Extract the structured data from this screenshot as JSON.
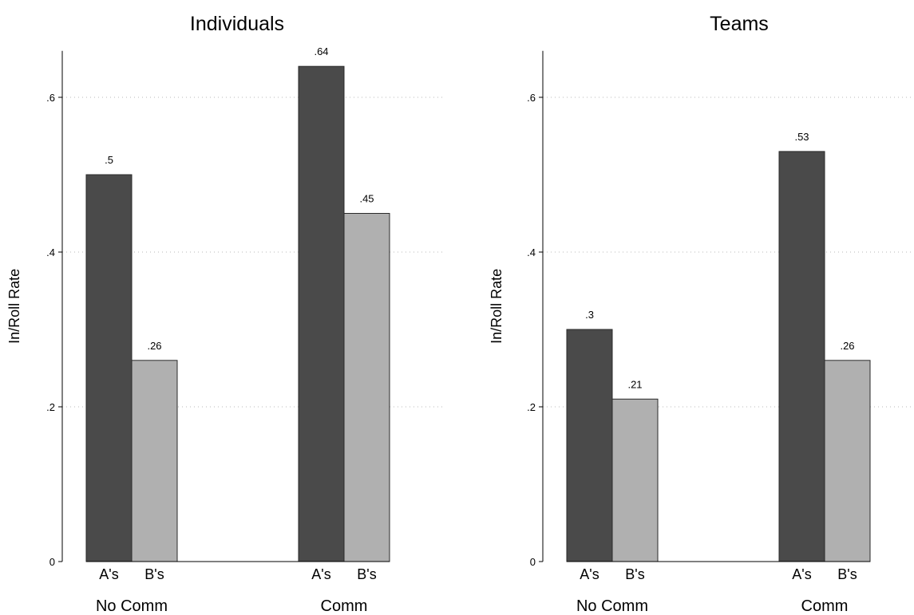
{
  "chart_data": [
    {
      "type": "bar",
      "title": "Individuals",
      "ylabel": "In/Roll Rate",
      "ylim": [
        0,
        0.66
      ],
      "yticks": [
        0,
        0.2,
        0.4,
        0.6
      ],
      "ytick_labels": [
        "0",
        ".2",
        ".4",
        ".6"
      ],
      "grid": true,
      "groups": [
        {
          "label": "No Comm",
          "bars": [
            {
              "category": "A's",
              "value": 0.5,
              "label": ".5",
              "color": "#4a4a4a"
            },
            {
              "category": "B's",
              "value": 0.26,
              "label": ".26",
              "color": "#b0b0b0"
            }
          ]
        },
        {
          "label": "Comm",
          "bars": [
            {
              "category": "A's",
              "value": 0.64,
              "label": ".64",
              "color": "#4a4a4a"
            },
            {
              "category": "B's",
              "value": 0.45,
              "label": ".45",
              "color": "#b0b0b0"
            }
          ]
        }
      ]
    },
    {
      "type": "bar",
      "title": "Teams",
      "ylabel": "In/Roll Rate",
      "ylim": [
        0,
        0.66
      ],
      "yticks": [
        0,
        0.2,
        0.4,
        0.6
      ],
      "ytick_labels": [
        "0",
        ".2",
        ".4",
        ".6"
      ],
      "grid": true,
      "groups": [
        {
          "label": "No Comm",
          "bars": [
            {
              "category": "A's",
              "value": 0.3,
              "label": ".3",
              "color": "#4a4a4a"
            },
            {
              "category": "B's",
              "value": 0.21,
              "label": ".21",
              "color": "#b0b0b0"
            }
          ]
        },
        {
          "label": "Comm",
          "bars": [
            {
              "category": "A's",
              "value": 0.53,
              "label": ".53",
              "color": "#4a4a4a"
            },
            {
              "category": "B's",
              "value": 0.26,
              "label": ".26",
              "color": "#b0b0b0"
            }
          ]
        }
      ]
    }
  ]
}
